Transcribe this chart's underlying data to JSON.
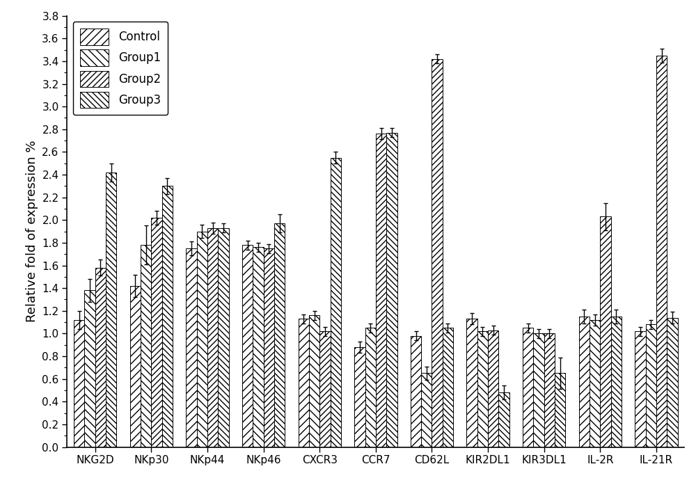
{
  "categories": [
    "NKG2D",
    "NKp30",
    "NKp44",
    "NKp46",
    "CXCR3",
    "CCR7",
    "CD62L",
    "KIR2DL1",
    "KIR3DL1",
    "IL-2R",
    "IL-21R"
  ],
  "groups": [
    "Control",
    "Group1",
    "Group2",
    "Group3"
  ],
  "values": {
    "Control": [
      1.12,
      1.42,
      1.75,
      1.78,
      1.13,
      0.88,
      0.98,
      1.13,
      1.05,
      1.15,
      1.02
    ],
    "Group1": [
      1.38,
      1.78,
      1.9,
      1.76,
      1.16,
      1.05,
      0.65,
      1.02,
      1.0,
      1.12,
      1.08
    ],
    "Group2": [
      1.58,
      2.02,
      1.93,
      1.75,
      1.02,
      2.76,
      3.42,
      1.03,
      1.0,
      2.03,
      3.45
    ],
    "Group3": [
      2.42,
      2.3,
      1.93,
      1.97,
      2.55,
      2.77,
      1.05,
      0.48,
      0.65,
      1.15,
      1.14
    ]
  },
  "errors": {
    "Control": [
      0.08,
      0.1,
      0.06,
      0.04,
      0.04,
      0.05,
      0.04,
      0.05,
      0.04,
      0.06,
      0.04
    ],
    "Group1": [
      0.1,
      0.17,
      0.06,
      0.04,
      0.04,
      0.04,
      0.06,
      0.04,
      0.04,
      0.05,
      0.04
    ],
    "Group2": [
      0.07,
      0.06,
      0.05,
      0.04,
      0.04,
      0.05,
      0.04,
      0.04,
      0.04,
      0.12,
      0.06
    ],
    "Group3": [
      0.08,
      0.07,
      0.04,
      0.08,
      0.05,
      0.04,
      0.04,
      0.06,
      0.14,
      0.06,
      0.05
    ]
  },
  "hatch_list": [
    "///",
    "\\\\\\",
    "////",
    "\\\\\\\\"
  ],
  "ylabel": "Relative fold of expression %",
  "ylim": [
    0.0,
    3.8
  ],
  "yticks": [
    0.0,
    0.2,
    0.4,
    0.6,
    0.8,
    1.0,
    1.2,
    1.4,
    1.6,
    1.8,
    2.0,
    2.2,
    2.4,
    2.6,
    2.8,
    3.0,
    3.2,
    3.4,
    3.6,
    3.8
  ],
  "axis_fontsize": 13,
  "tick_fontsize": 11,
  "legend_fontsize": 12,
  "bar_width": 0.19
}
